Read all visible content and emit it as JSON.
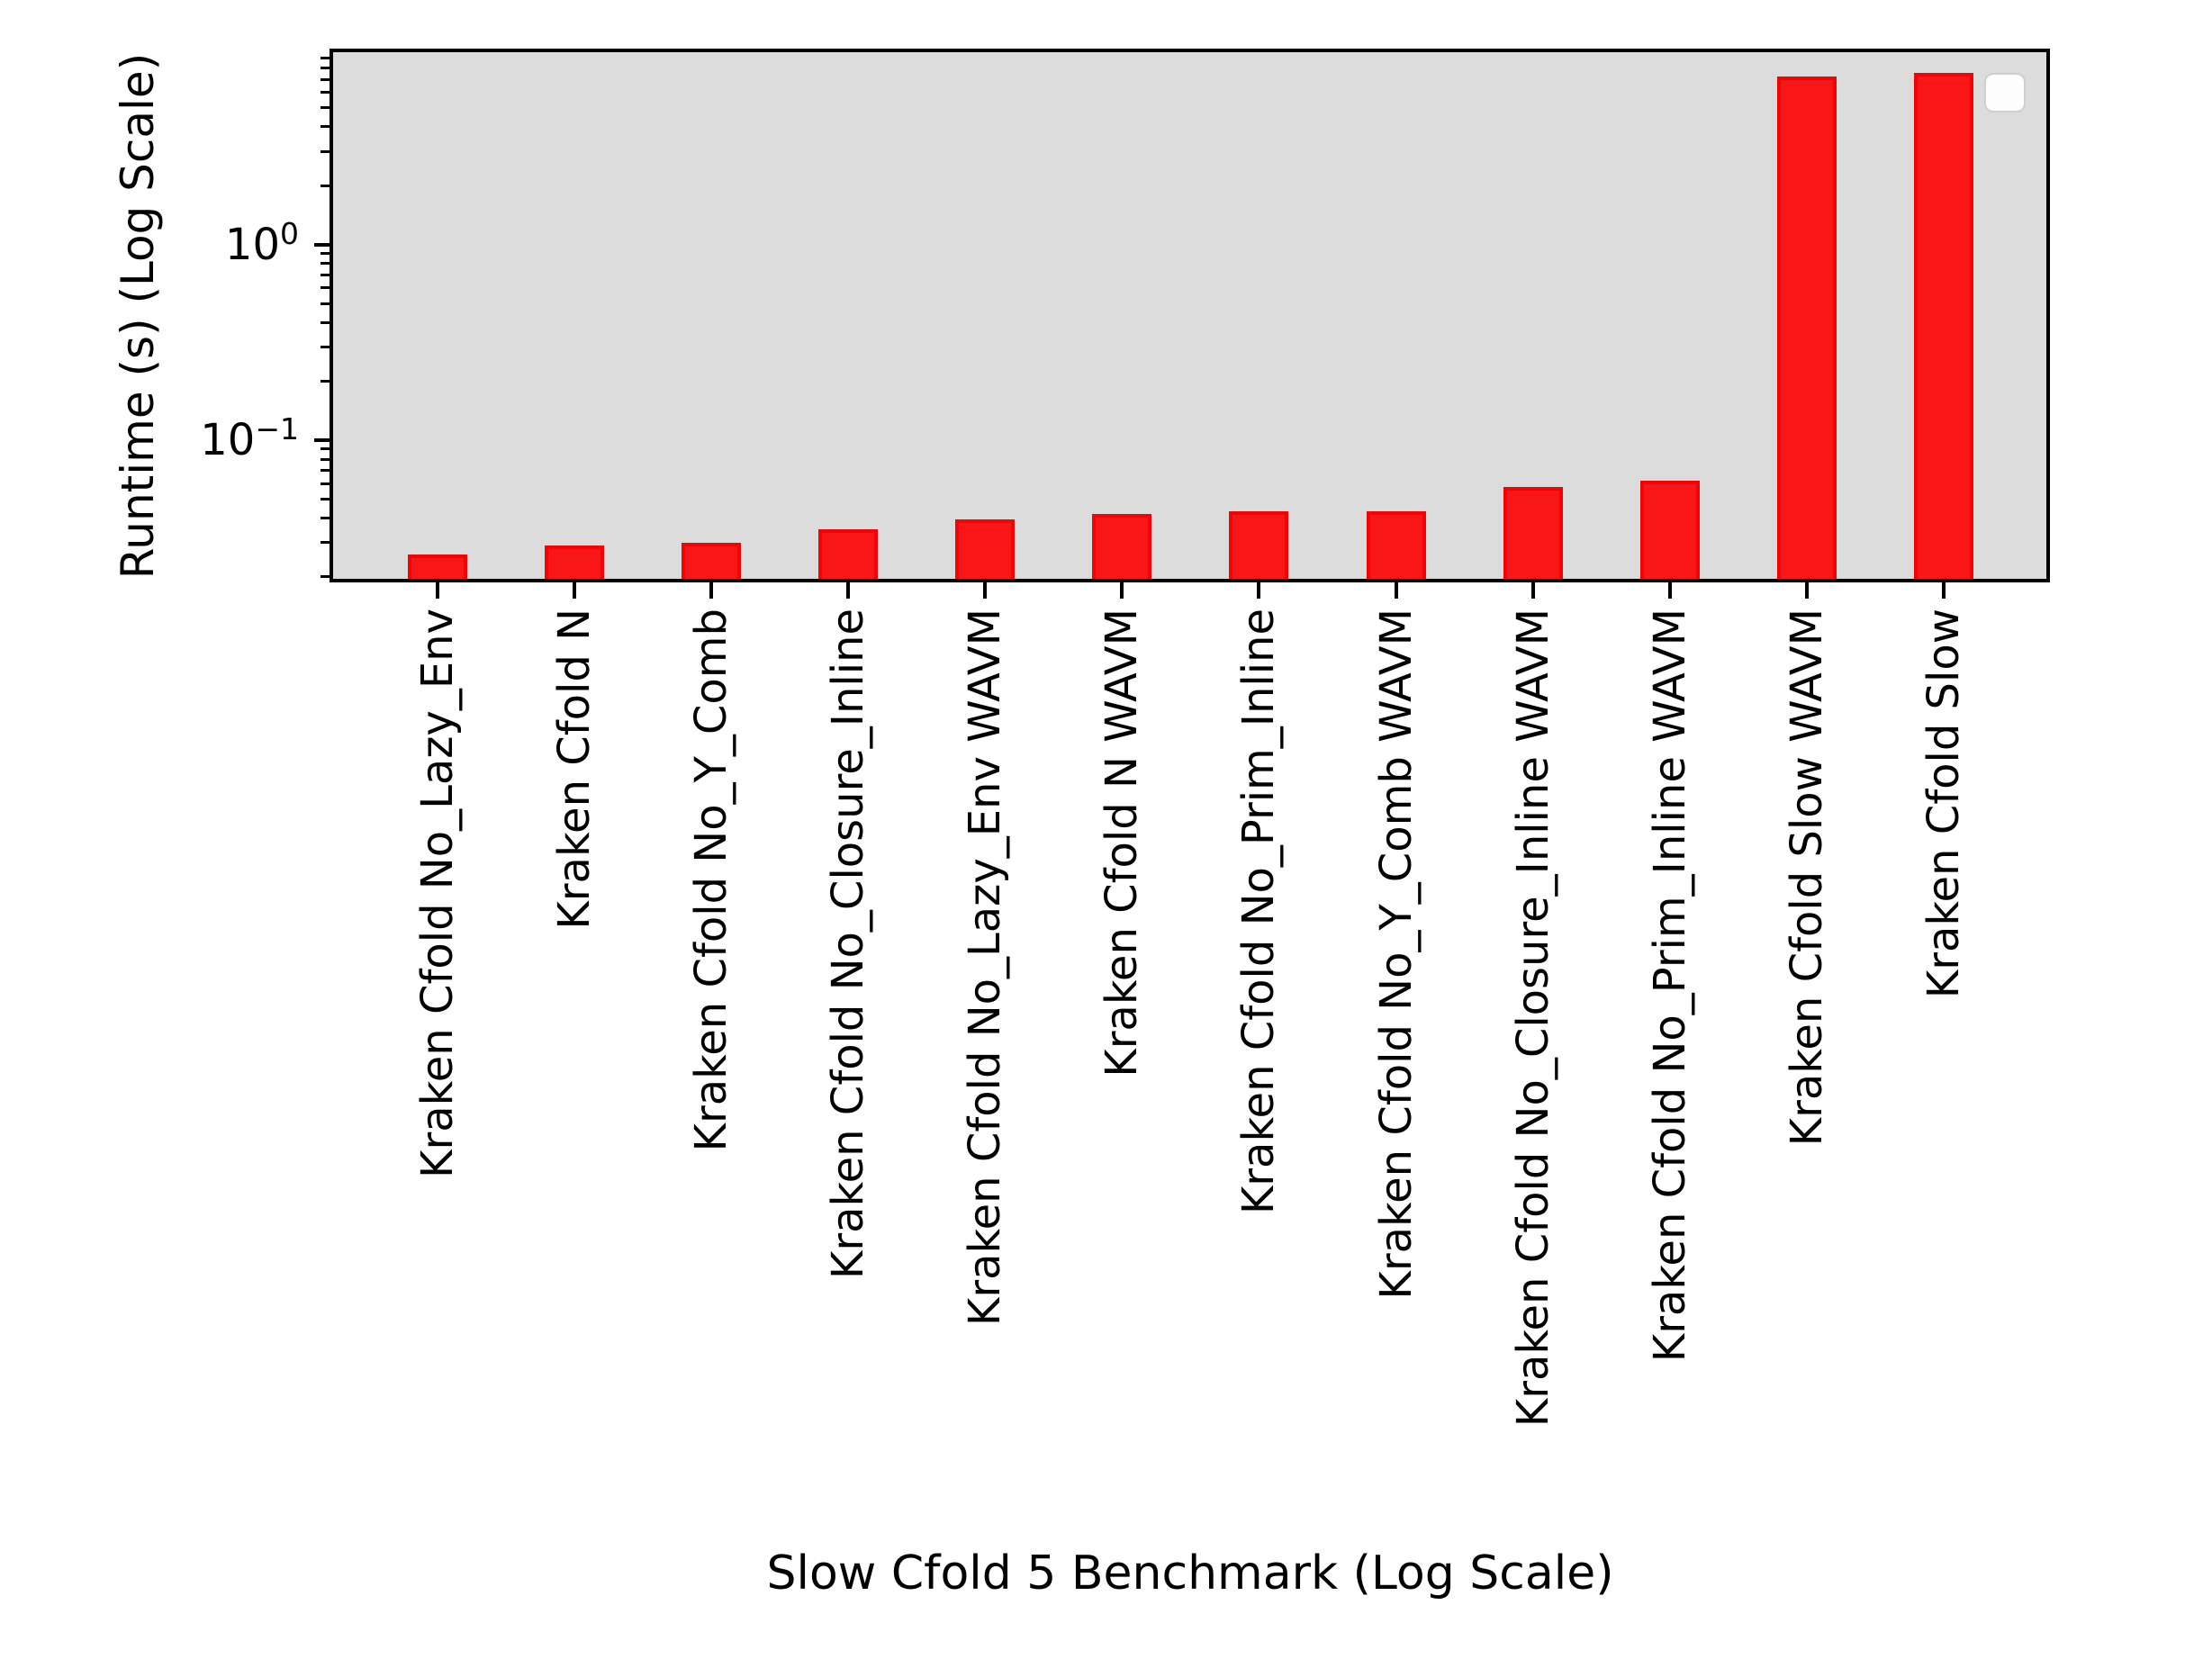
{
  "chart_data": {
    "type": "bar",
    "title": "",
    "xlabel": "Slow Cfold 5 Benchmark (Log Scale)",
    "ylabel": "Runtime (s) (Log Scale)",
    "yscale": "log",
    "ylim": [
      0.02,
      10.2
    ],
    "grid": false,
    "legend": {
      "visible": true,
      "position": "upper right",
      "entries": []
    },
    "plot_background": "#dcdcdc",
    "series_color": "#f81616",
    "bar_edge_color": "#f30303",
    "categories": [
      "Kraken Cfold No_Lazy_Env",
      "Kraken Cfold N",
      "Kraken Cfold No_Y_Comb",
      "Kraken Cfold No_Closure_Inline",
      "Kraken Cfold No_Lazy_Env WAVM",
      "Kraken Cfold N WAVM",
      "Kraken Cfold No_Prim_Inline",
      "Kraken Cfold No_Y_Comb WAVM",
      "Kraken Cfold No_Closure_Inline WAVM",
      "Kraken Cfold No_Prim_Inline WAVM",
      "Kraken Cfold Slow WAVM",
      "Kraken Cfold Slow"
    ],
    "values": [
      0.026,
      0.029,
      0.03,
      0.035,
      0.0395,
      0.042,
      0.0434,
      0.0432,
      0.0576,
      0.062,
      7.23,
      7.57
    ],
    "yticks": [
      {
        "value": 1,
        "base": "10",
        "exp": "0"
      },
      {
        "value": 0.1,
        "base": "10",
        "exp": "−1"
      }
    ]
  }
}
